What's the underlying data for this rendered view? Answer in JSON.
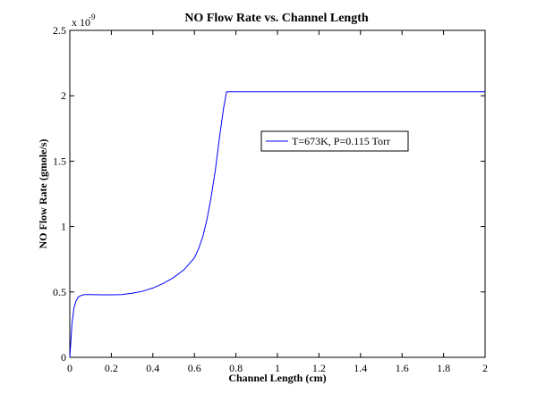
{
  "chart_data": {
    "type": "line",
    "title": "NO Flow Rate vs. Channel Length",
    "xlabel": "Channel Length (cm)",
    "ylabel": "NO Flow Rate (gmole/s)",
    "y_multiplier": "x 10",
    "y_exponent": "-9",
    "xlim": [
      0,
      2
    ],
    "ylim": [
      0,
      2.5
    ],
    "x_ticks": [
      0,
      0.2,
      0.4,
      0.6,
      0.8,
      1,
      1.2,
      1.4,
      1.6,
      1.8,
      2
    ],
    "x_tick_labels": [
      "0",
      "0.2",
      "0.4",
      "0.6",
      "0.8",
      "1",
      "1.2",
      "1.4",
      "1.6",
      "1.8",
      "2"
    ],
    "y_ticks": [
      0,
      0.5,
      1,
      1.5,
      2,
      2.5
    ],
    "y_tick_labels": [
      "0",
      "0.5",
      "1",
      "1.5",
      "2",
      "2.5"
    ],
    "grid": false,
    "legend_position": "center-right",
    "series": [
      {
        "name": "T=673K, P=0.115 Torr",
        "color": "#0000ff",
        "x": [
          0,
          0.005,
          0.01,
          0.02,
          0.03,
          0.04,
          0.05,
          0.07,
          0.1,
          0.15,
          0.2,
          0.25,
          0.3,
          0.35,
          0.4,
          0.45,
          0.5,
          0.55,
          0.6,
          0.62,
          0.64,
          0.66,
          0.68,
          0.7,
          0.72,
          0.74,
          0.755,
          0.76,
          0.8,
          1.0,
          1.2,
          1.4,
          1.6,
          1.8,
          2.0
        ],
        "y": [
          0,
          0.12,
          0.25,
          0.38,
          0.43,
          0.46,
          0.47,
          0.48,
          0.48,
          0.478,
          0.478,
          0.48,
          0.49,
          0.505,
          0.53,
          0.565,
          0.61,
          0.67,
          0.76,
          0.83,
          0.92,
          1.05,
          1.22,
          1.42,
          1.67,
          1.9,
          2.03,
          2.03,
          2.03,
          2.03,
          2.03,
          2.03,
          2.03,
          2.03,
          2.03
        ]
      }
    ]
  }
}
